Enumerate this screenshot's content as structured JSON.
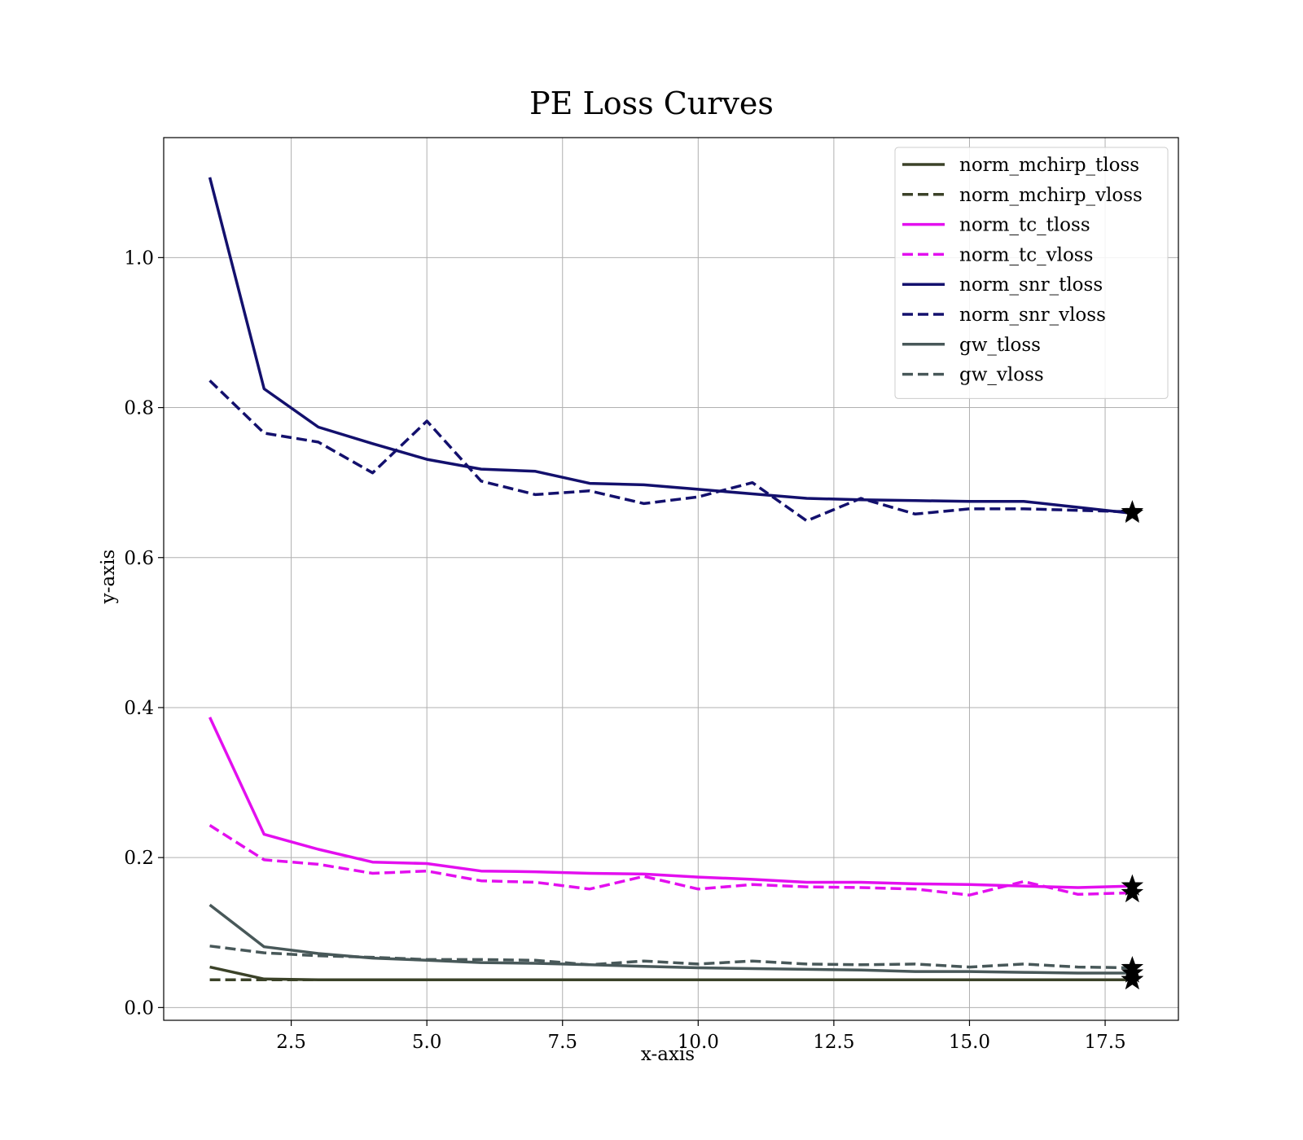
{
  "chart_data": {
    "type": "line",
    "title": "PE Loss Curves",
    "xlabel": "x-axis",
    "ylabel": "y-axis",
    "xlim": [
      0.15,
      18.85
    ],
    "ylim": [
      -0.017,
      1.16
    ],
    "xticks": [
      2.5,
      5.0,
      7.5,
      10.0,
      12.5,
      15.0,
      17.5
    ],
    "xtick_labels": [
      "2.5",
      "5.0",
      "7.5",
      "10.0",
      "12.5",
      "15.0",
      "17.5"
    ],
    "yticks": [
      0.0,
      0.2,
      0.4,
      0.6,
      0.8,
      1.0
    ],
    "ytick_labels": [
      "0.0",
      "0.2",
      "0.4",
      "0.6",
      "0.8",
      "1.0"
    ],
    "grid": true,
    "legend_position": "top-right",
    "x": [
      1,
      2,
      3,
      4,
      5,
      6,
      7,
      8,
      9,
      10,
      11,
      12,
      13,
      14,
      15,
      16,
      17,
      18
    ],
    "series": [
      {
        "name": "norm_mchirp_tloss",
        "color": "#3b4228",
        "dash": "solid",
        "values": [
          0.054,
          0.038,
          0.037,
          0.037,
          0.037,
          0.037,
          0.037,
          0.037,
          0.037,
          0.037,
          0.037,
          0.037,
          0.037,
          0.037,
          0.037,
          0.037,
          0.037,
          0.037
        ]
      },
      {
        "name": "norm_mchirp_vloss",
        "color": "#3b4228",
        "dash": "dashed",
        "values": [
          0.037,
          0.037,
          0.037,
          0.037,
          0.037,
          0.037,
          0.037,
          0.037,
          0.037,
          0.037,
          0.037,
          0.037,
          0.037,
          0.037,
          0.037,
          0.037,
          0.037,
          0.037
        ]
      },
      {
        "name": "norm_tc_tloss",
        "color": "#e30fef",
        "dash": "solid",
        "values": [
          0.387,
          0.231,
          0.211,
          0.194,
          0.192,
          0.182,
          0.181,
          0.179,
          0.178,
          0.174,
          0.171,
          0.167,
          0.167,
          0.165,
          0.164,
          0.162,
          0.16,
          0.162
        ]
      },
      {
        "name": "norm_tc_vloss",
        "color": "#e30fef",
        "dash": "dashed",
        "values": [
          0.243,
          0.197,
          0.191,
          0.179,
          0.182,
          0.169,
          0.167,
          0.158,
          0.175,
          0.158,
          0.164,
          0.161,
          0.16,
          0.158,
          0.15,
          0.168,
          0.151,
          0.153
        ]
      },
      {
        "name": "norm_snr_tloss",
        "color": "#13106d",
        "dash": "solid",
        "values": [
          1.107,
          0.825,
          0.774,
          0.752,
          0.731,
          0.718,
          0.715,
          0.699,
          0.697,
          0.691,
          0.685,
          0.679,
          0.677,
          0.676,
          0.675,
          0.675,
          0.667,
          0.659
        ]
      },
      {
        "name": "norm_snr_vloss",
        "color": "#13106d",
        "dash": "dashed",
        "values": [
          0.836,
          0.766,
          0.754,
          0.713,
          0.782,
          0.702,
          0.684,
          0.689,
          0.672,
          0.681,
          0.7,
          0.649,
          0.679,
          0.658,
          0.665,
          0.665,
          0.663,
          0.661
        ]
      },
      {
        "name": "gw_tloss",
        "color": "#485859",
        "dash": "solid",
        "values": [
          0.137,
          0.081,
          0.072,
          0.066,
          0.063,
          0.06,
          0.059,
          0.057,
          0.055,
          0.053,
          0.052,
          0.051,
          0.05,
          0.048,
          0.048,
          0.047,
          0.046,
          0.046
        ]
      },
      {
        "name": "gw_vloss",
        "color": "#485859",
        "dash": "dashed",
        "values": [
          0.082,
          0.073,
          0.069,
          0.067,
          0.064,
          0.064,
          0.063,
          0.057,
          0.062,
          0.058,
          0.062,
          0.058,
          0.057,
          0.058,
          0.054,
          0.058,
          0.054,
          0.053
        ]
      }
    ]
  }
}
